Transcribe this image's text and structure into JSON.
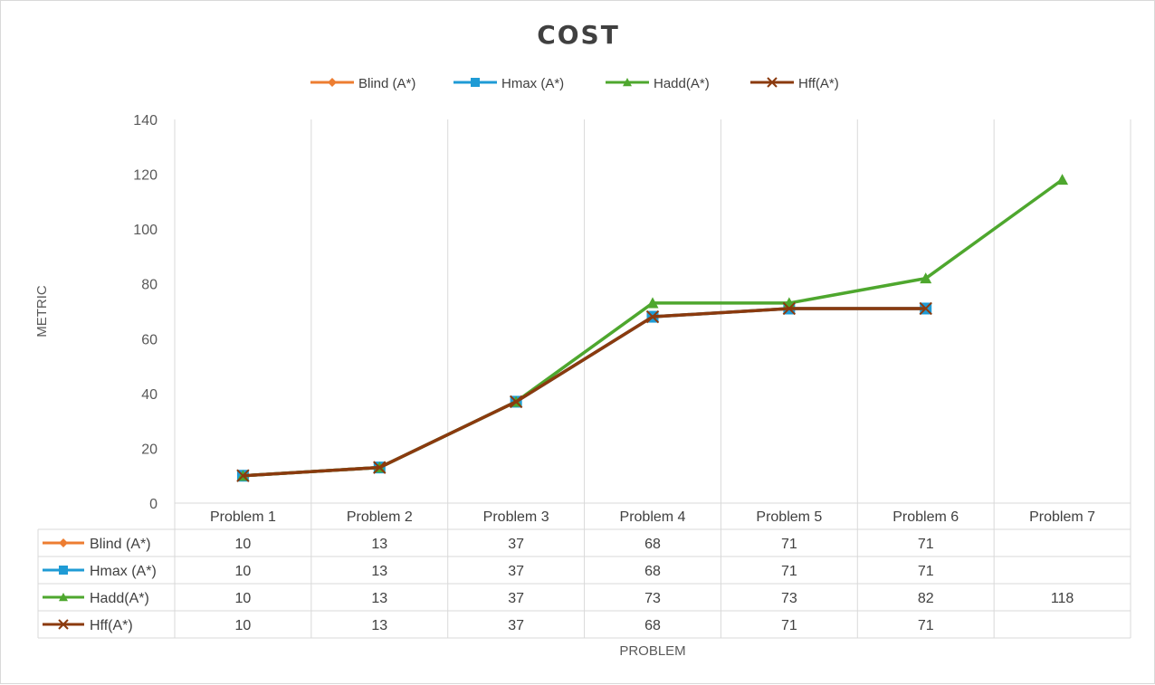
{
  "chart_data": {
    "type": "line",
    "title": "COST",
    "xlabel": "PROBLEM",
    "ylabel": "METRIC",
    "categories": [
      "Problem 1",
      "Problem 2",
      "Problem 3",
      "Problem 4",
      "Problem 5",
      "Problem 6",
      "Problem 7"
    ],
    "ylim": [
      0,
      140
    ],
    "yticks": [
      0,
      20,
      40,
      60,
      80,
      100,
      120,
      140
    ],
    "grid": "vertical",
    "legend_position": "top",
    "data_table": true,
    "series": [
      {
        "name": "Blind (A*)",
        "values": [
          10,
          13,
          37,
          68,
          71,
          71,
          null
        ],
        "color": "#ED7D31",
        "marker": "diamond"
      },
      {
        "name": "Hmax (A*)",
        "values": [
          10,
          13,
          37,
          68,
          71,
          71,
          null
        ],
        "color": "#1F9BD5",
        "marker": "square"
      },
      {
        "name": "Hadd(A*)",
        "values": [
          10,
          13,
          37,
          73,
          73,
          82,
          118
        ],
        "color": "#4EA72E",
        "marker": "triangle"
      },
      {
        "name": "Hff(A*)",
        "values": [
          10,
          13,
          37,
          68,
          71,
          71,
          null
        ],
        "color": "#8B3A0E",
        "marker": "x"
      }
    ]
  }
}
